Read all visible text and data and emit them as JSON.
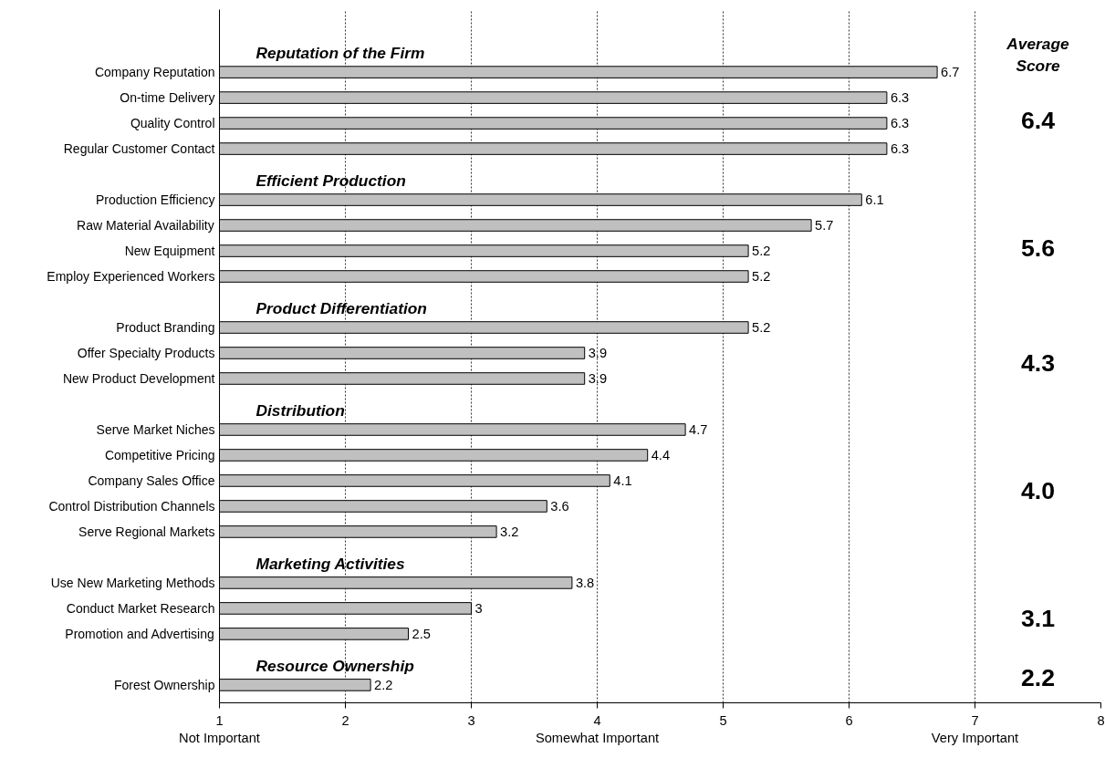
{
  "chart_data": {
    "type": "bar",
    "orientation": "horizontal",
    "categories": [
      null,
      "Company Reputation",
      "On-time Delivery",
      "Quality Control",
      "Regular Customer Contact",
      null,
      "Production Efficiency",
      "Raw Material Availability",
      "New Equipment",
      "Employ Experienced Workers",
      null,
      "Product Branding",
      "Offer Specialty Products",
      "New Product Development",
      null,
      "Serve Market Niches",
      "Competitive Pricing",
      "Company Sales Office",
      "Control Distribution Channels",
      "Serve Regional Markets",
      null,
      "Use New Marketing Methods",
      "Conduct Market Research",
      "Promotion and Advertising",
      null,
      "Forest Ownership"
    ],
    "values": [
      null,
      6.7,
      6.3,
      6.3,
      6.3,
      null,
      6.1,
      5.7,
      5.2,
      5.2,
      null,
      5.2,
      3.9,
      3.9,
      null,
      4.7,
      4.4,
      4.1,
      3.6,
      3.2,
      null,
      3.8,
      3,
      2.5,
      null,
      2.2
    ],
    "color": "#c0c0c0",
    "data_labels": true,
    "xlim": [
      1,
      8
    ],
    "xticks": [
      {
        "value": 1,
        "label": "1\nNot Important"
      },
      2,
      3,
      {
        "value": 4,
        "label": "4\nSomewhat Important"
      },
      5,
      6,
      {
        "value": 7,
        "label": "7\nVery Important"
      },
      8
    ],
    "grid": "x",
    "annotations": [
      "Reputation of the Firm",
      "Efficient Production",
      "Product Differentiation",
      "Distribution",
      "Marketing Activities",
      "Resource Ownership",
      "Average\nScore",
      "6.4",
      "5.6",
      "4.3",
      "4.0",
      "3.1",
      "2.2"
    ]
  }
}
